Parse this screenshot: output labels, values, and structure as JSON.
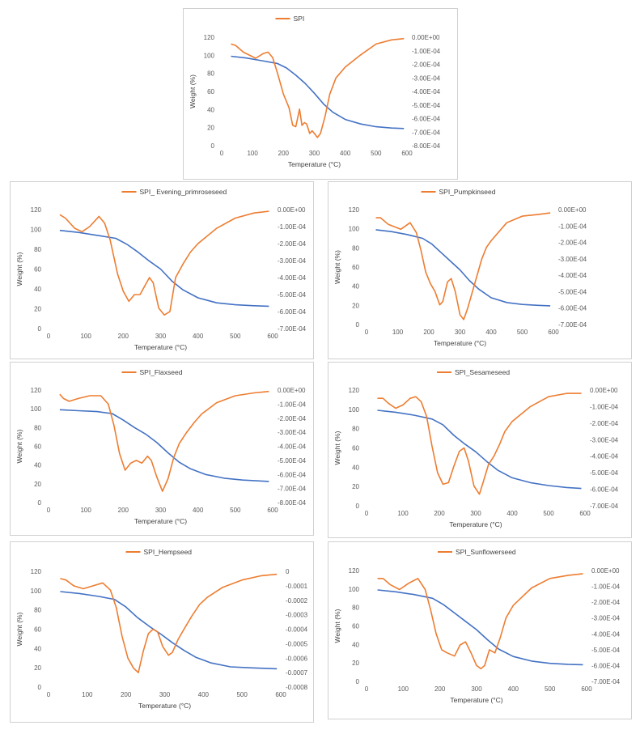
{
  "colors": {
    "weight": "#4472C4",
    "derivative": "#ED7D31",
    "axis_text": "#595959",
    "frame": "#d0d0d0"
  },
  "chart_data": [
    {
      "type": "line",
      "title": "",
      "legend": "SPI",
      "xlabel": "Temperature (°C)",
      "ylabel": "Weight (%)",
      "xlim": [
        0,
        600
      ],
      "xticks": [
        "0",
        "100",
        "200",
        "300",
        "400",
        "500",
        "600"
      ],
      "ylim": [
        0,
        120
      ],
      "yticks": [
        "0",
        "20",
        "40",
        "60",
        "80",
        "100",
        "120"
      ],
      "y2lim": [
        -0.0008,
        0
      ],
      "y2ticks": [
        "0.00E+00",
        "-1.00E-04",
        "-2.00E-04",
        "-3.00E-04",
        "-4.00E-04",
        "-5.00E-04",
        "-6.00E-04",
        "-7.00E-04",
        "-8.00E-04"
      ],
      "series": [
        {
          "axis": "left",
          "color": "#4472C4",
          "x": [
            30,
            80,
            130,
            180,
            210,
            240,
            270,
            300,
            330,
            360,
            400,
            450,
            500,
            550,
            590
          ],
          "y": [
            99,
            97,
            94,
            91,
            86,
            78,
            69,
            58,
            46,
            37,
            29,
            24,
            21,
            19.5,
            19
          ]
        },
        {
          "name": "SPI",
          "axis": "right",
          "color": "#ED7D31",
          "x": [
            30,
            45,
            70,
            110,
            135,
            150,
            165,
            180,
            200,
            218,
            230,
            240,
            252,
            260,
            268,
            275,
            285,
            293,
            300,
            310,
            320,
            335,
            350,
            370,
            400,
            450,
            500,
            550,
            590
          ],
          "y": [
            -5e-05,
            -6e-05,
            -0.00011,
            -0.000155,
            -0.00012,
            -0.00011,
            -0.00015,
            -0.00026,
            -0.00042,
            -0.00052,
            -0.00065,
            -0.00066,
            -0.00053,
            -0.00065,
            -0.00063,
            -0.00064,
            -0.00071,
            -0.00069,
            -0.00071,
            -0.00074,
            -0.00071,
            -0.00058,
            -0.00042,
            -0.0003,
            -0.00022,
            -0.00013,
            -5e-05,
            -2e-05,
            -1e-05
          ]
        }
      ]
    },
    {
      "type": "line",
      "title": "",
      "legend": "SPI_ Evening_primroseseed",
      "xlabel": "Temperature (°C)",
      "ylabel": "Weight (%)",
      "xlim": [
        0,
        600
      ],
      "xticks": [
        "0",
        "100",
        "200",
        "300",
        "400",
        "500",
        "600"
      ],
      "ylim": [
        0,
        120
      ],
      "yticks": [
        "0",
        "20",
        "40",
        "60",
        "80",
        "100",
        "120"
      ],
      "y2lim": [
        -0.0007,
        0
      ],
      "y2ticks": [
        "0.00E+00",
        "-1.00E-04",
        "-2.00E-04",
        "-3.00E-04",
        "-4.00E-04",
        "-5.00E-04",
        "-6.00E-04",
        "-7.00E-04"
      ],
      "series": [
        {
          "axis": "left",
          "color": "#4472C4",
          "x": [
            30,
            80,
            130,
            180,
            210,
            240,
            270,
            300,
            330,
            360,
            400,
            450,
            500,
            550,
            590
          ],
          "y": [
            99,
            97,
            94,
            91,
            85,
            77,
            68,
            60,
            48,
            39,
            31,
            26,
            24,
            23,
            22.5
          ]
        },
        {
          "name": "SPI_ Evening_primroseseed",
          "axis": "right",
          "color": "#ED7D31",
          "x": [
            30,
            45,
            70,
            90,
            110,
            135,
            150,
            165,
            185,
            200,
            215,
            230,
            245,
            260,
            270,
            280,
            295,
            310,
            325,
            340,
            360,
            380,
            400,
            450,
            500,
            550,
            590
          ],
          "y": [
            -3e-05,
            -5e-05,
            -0.00011,
            -0.00013,
            -0.0001,
            -4e-05,
            -8e-05,
            -0.00018,
            -0.00038,
            -0.00048,
            -0.00054,
            -0.0005,
            -0.0005,
            -0.00044,
            -0.0004,
            -0.00043,
            -0.00058,
            -0.00062,
            -0.0006,
            -0.0004,
            -0.00032,
            -0.00025,
            -0.0002,
            -0.00011,
            -5e-05,
            -2e-05,
            -1e-05
          ]
        }
      ]
    },
    {
      "type": "line",
      "title": "",
      "legend": "SPI_Pumpkinseed",
      "xlabel": "Temperature (°C)",
      "ylabel": "Weight (%)",
      "xlim": [
        0,
        600
      ],
      "xticks": [
        "0",
        "100",
        "200",
        "300",
        "400",
        "500",
        "600"
      ],
      "ylim": [
        0,
        120
      ],
      "yticks": [
        "0",
        "20",
        "40",
        "60",
        "80",
        "100",
        "120"
      ],
      "y2lim": [
        -0.0007,
        0
      ],
      "y2ticks": [
        "0.00E+00",
        "-1.00E-04",
        "-2.00E-04",
        "-3.00E-04",
        "-4.00E-04",
        "-5.00E-04",
        "-6.00E-04",
        "-7.00E-04"
      ],
      "series": [
        {
          "axis": "left",
          "color": "#4472C4",
          "x": [
            30,
            80,
            130,
            180,
            210,
            240,
            270,
            300,
            330,
            360,
            400,
            450,
            500,
            550,
            590
          ],
          "y": [
            99,
            97,
            94,
            90,
            84,
            75,
            66,
            57,
            46,
            37,
            28,
            23,
            21,
            20,
            19.5
          ]
        },
        {
          "name": "SPI_Pumpkinseed",
          "axis": "right",
          "color": "#ED7D31",
          "x": [
            30,
            45,
            70,
            110,
            140,
            160,
            175,
            190,
            205,
            220,
            235,
            245,
            260,
            272,
            285,
            300,
            312,
            325,
            340,
            355,
            370,
            385,
            400,
            450,
            500,
            550,
            590
          ],
          "y": [
            -5e-05,
            -5e-05,
            -9e-05,
            -0.00012,
            -8e-05,
            -0.00014,
            -0.00025,
            -0.00038,
            -0.00045,
            -0.0005,
            -0.00058,
            -0.00056,
            -0.00044,
            -0.00042,
            -0.0005,
            -0.00064,
            -0.00067,
            -0.0006,
            -0.0005,
            -0.0004,
            -0.0003,
            -0.00023,
            -0.00019,
            -8e-05,
            -4e-05,
            -3e-05,
            -2e-05
          ]
        }
      ]
    },
    {
      "type": "line",
      "title": "",
      "legend": "SPI_Flaxseed",
      "xlabel": "Temperature (°C)",
      "ylabel": "Weight (%)",
      "xlim": [
        0,
        600
      ],
      "xticks": [
        "0",
        "100",
        "200",
        "300",
        "400",
        "500",
        "600"
      ],
      "ylim": [
        0,
        120
      ],
      "yticks": [
        "0",
        "20",
        "40",
        "60",
        "80",
        "100",
        "120"
      ],
      "y2lim": [
        -0.0008,
        0
      ],
      "y2ticks": [
        "0.00E+00",
        "-1.00E-04",
        "-2.00E-04",
        "-3.00E-04",
        "-4.00E-04",
        "-5.00E-04",
        "-6.00E-04",
        "-7.00E-04",
        "-8.00E-04"
      ],
      "series": [
        {
          "axis": "left",
          "color": "#4472C4",
          "x": [
            30,
            80,
            130,
            170,
            200,
            230,
            260,
            290,
            320,
            350,
            380,
            420,
            470,
            520,
            590
          ],
          "y": [
            99,
            98,
            97,
            95,
            88,
            80,
            73,
            64,
            53,
            43,
            36,
            30,
            26,
            24,
            22.5
          ]
        },
        {
          "name": "SPI_Flaxseed",
          "axis": "right",
          "color": "#ED7D31",
          "x": [
            30,
            40,
            55,
            80,
            110,
            140,
            160,
            175,
            190,
            205,
            220,
            235,
            250,
            265,
            275,
            290,
            305,
            320,
            335,
            350,
            370,
            390,
            410,
            450,
            500,
            550,
            590
          ],
          "y": [
            -3e-05,
            -6e-05,
            -8e-05,
            -6e-05,
            -4e-05,
            -4e-05,
            -0.0001,
            -0.00025,
            -0.00045,
            -0.00057,
            -0.00052,
            -0.0005,
            -0.00052,
            -0.00047,
            -0.0005,
            -0.00062,
            -0.00072,
            -0.00063,
            -0.00048,
            -0.00038,
            -0.0003,
            -0.00023,
            -0.00017,
            -9e-05,
            -4e-05,
            -2e-05,
            -1e-05
          ]
        }
      ]
    },
    {
      "type": "line",
      "title": "",
      "legend": "SPI_Sesameseed",
      "xlabel": "Temperature (°C)",
      "ylabel": "Weight (%)",
      "xlim": [
        0,
        600
      ],
      "xticks": [
        "0",
        "100",
        "200",
        "300",
        "400",
        "500",
        "600"
      ],
      "ylim": [
        0,
        120
      ],
      "yticks": [
        "0",
        "20",
        "40",
        "60",
        "80",
        "100",
        "120"
      ],
      "y2lim": [
        -0.0007,
        0
      ],
      "y2ticks": [
        "0.00E+00",
        "-1.00E-04",
        "-2.00E-04",
        "-3.00E-04",
        "-4.00E-04",
        "-5.00E-04",
        "-6.00E-04",
        "-7.00E-04"
      ],
      "series": [
        {
          "axis": "left",
          "color": "#4472C4",
          "x": [
            30,
            80,
            130,
            180,
            210,
            240,
            270,
            300,
            330,
            360,
            400,
            450,
            500,
            550,
            590
          ],
          "y": [
            99,
            97,
            94,
            90,
            84,
            73,
            64,
            56,
            46,
            37,
            29,
            24,
            21,
            19,
            18
          ]
        },
        {
          "name": "SPI_Sesameseed",
          "axis": "right",
          "color": "#ED7D31",
          "x": [
            30,
            45,
            60,
            80,
            100,
            120,
            135,
            150,
            165,
            180,
            195,
            210,
            225,
            240,
            255,
            268,
            280,
            295,
            310,
            320,
            335,
            350,
            365,
            380,
            400,
            450,
            500,
            550,
            590
          ],
          "y": [
            -5e-05,
            -5e-05,
            -8e-05,
            -0.00011,
            -9e-05,
            -5e-05,
            -4e-05,
            -7e-05,
            -0.00016,
            -0.00034,
            -0.0005,
            -0.00057,
            -0.00056,
            -0.00046,
            -0.00037,
            -0.00035,
            -0.00043,
            -0.00058,
            -0.00063,
            -0.00056,
            -0.00045,
            -0.0004,
            -0.00033,
            -0.00025,
            -0.00019,
            -0.0001,
            -4e-05,
            -2e-05,
            -2e-05
          ]
        }
      ]
    },
    {
      "type": "line",
      "title": "",
      "legend": "SPI_Hempseed",
      "xlabel": "Temperature (°C)",
      "ylabel": "Weight (%)",
      "xlim": [
        0,
        600
      ],
      "xticks": [
        "0",
        "100",
        "200",
        "300",
        "400",
        "500",
        "600"
      ],
      "ylim": [
        0,
        120
      ],
      "yticks": [
        "0",
        "20",
        "40",
        "60",
        "80",
        "100",
        "120"
      ],
      "y2lim": [
        -0.0008,
        0
      ],
      "y2ticks": [
        "0",
        "-0.0001",
        "-0.0002",
        "-0.0003",
        "-0.0004",
        "-0.0005",
        "-0.0006",
        "-0.0007",
        "-0.0008"
      ],
      "series": [
        {
          "axis": "left",
          "color": "#4472C4",
          "x": [
            30,
            80,
            130,
            170,
            200,
            230,
            260,
            290,
            320,
            350,
            380,
            420,
            470,
            520,
            590
          ],
          "y": [
            99,
            97,
            94,
            91,
            83,
            72,
            63,
            55,
            46,
            38,
            31,
            25,
            21,
            20,
            19
          ]
        },
        {
          "name": "SPI_Hempseed",
          "axis": "right",
          "color": "#ED7D31",
          "x": [
            30,
            45,
            65,
            90,
            115,
            140,
            160,
            175,
            190,
            205,
            220,
            232,
            245,
            258,
            270,
            282,
            295,
            310,
            320,
            335,
            350,
            370,
            390,
            410,
            450,
            500,
            550,
            590
          ],
          "y": [
            -5e-05,
            -6e-05,
            -0.0001,
            -0.00012,
            -0.0001,
            -8e-05,
            -0.00013,
            -0.00025,
            -0.00045,
            -0.0006,
            -0.00067,
            -0.0007,
            -0.00055,
            -0.00043,
            -0.0004,
            -0.00042,
            -0.00052,
            -0.00058,
            -0.00056,
            -0.00047,
            -0.0004,
            -0.00031,
            -0.00023,
            -0.00018,
            -0.00011,
            -6e-05,
            -3e-05,
            -2e-05
          ]
        }
      ]
    },
    {
      "type": "line",
      "title": "",
      "legend": "SPI_Sunflowerseed",
      "xlabel": "Temperature (°C)",
      "ylabel": "Weight (%)",
      "xlim": [
        0,
        600
      ],
      "xticks": [
        "0",
        "100",
        "200",
        "300",
        "400",
        "500",
        "600"
      ],
      "ylim": [
        0,
        120
      ],
      "yticks": [
        "0",
        "20",
        "40",
        "60",
        "80",
        "100",
        "120"
      ],
      "y2lim": [
        -0.0007,
        0
      ],
      "y2ticks": [
        "0.00E+00",
        "-1.00E-04",
        "-2.00E-04",
        "-3.00E-04",
        "-4.00E-04",
        "-5.00E-04",
        "-6.00E-04",
        "-7.00E-04"
      ],
      "series": [
        {
          "axis": "left",
          "color": "#4472C4",
          "x": [
            30,
            80,
            130,
            180,
            210,
            240,
            270,
            300,
            330,
            360,
            400,
            450,
            500,
            550,
            590
          ],
          "y": [
            99,
            97,
            94,
            90,
            83,
            74,
            65,
            56,
            45,
            35,
            27,
            22,
            19.5,
            18.5,
            18
          ]
        },
        {
          "name": "SPI_Sunflowerseed",
          "axis": "right",
          "color": "#ED7D31",
          "x": [
            30,
            45,
            65,
            90,
            115,
            140,
            160,
            175,
            190,
            205,
            220,
            240,
            255,
            270,
            285,
            300,
            312,
            322,
            335,
            350,
            365,
            380,
            400,
            450,
            500,
            550,
            590
          ],
          "y": [
            -5e-05,
            -5e-05,
            -9e-05,
            -0.00012,
            -8e-05,
            -5e-05,
            -0.00012,
            -0.00025,
            -0.0004,
            -0.0005,
            -0.00052,
            -0.00054,
            -0.00047,
            -0.00045,
            -0.00052,
            -0.0006,
            -0.00062,
            -0.0006,
            -0.0005,
            -0.00052,
            -0.00042,
            -0.0003,
            -0.00022,
            -0.00011,
            -5e-05,
            -3e-05,
            -2e-05
          ]
        }
      ]
    }
  ]
}
